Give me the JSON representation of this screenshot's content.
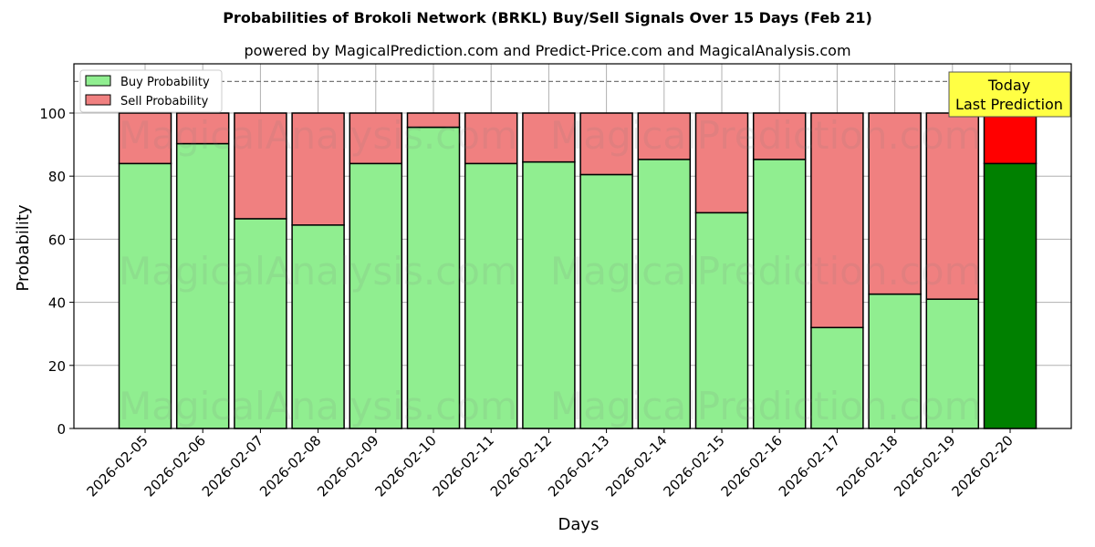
{
  "chart_data": {
    "type": "bar",
    "stacked": true,
    "title": "Probabilities of Brokoli Network (BRKL) Buy/Sell Signals Over 15 Days (Feb 21)",
    "subtitle": "powered by MagicalPrediction.com and Predict-Price.com and MagicalAnalysis.com",
    "xlabel": "Days",
    "ylabel": "Probability",
    "ylim": [
      0,
      115
    ],
    "yticks": [
      0,
      20,
      40,
      60,
      80,
      100
    ],
    "grid": true,
    "legend_position": "upper left",
    "reference_line": 110,
    "categories": [
      "2026-02-05",
      "2026-02-06",
      "2026-02-07",
      "2026-02-08",
      "2026-02-09",
      "2026-02-10",
      "2026-02-11",
      "2026-02-12",
      "2026-02-13",
      "2026-02-14",
      "2026-02-15",
      "2026-02-16",
      "2026-02-17",
      "2026-02-18",
      "2026-02-19",
      "2026-02-20"
    ],
    "series": [
      {
        "name": "Buy Probability",
        "color": "#90ee90",
        "values": [
          84,
          90.3,
          66.5,
          64.5,
          84,
          95.5,
          84,
          84.5,
          80.5,
          85.3,
          68.4,
          85.3,
          32,
          42.6,
          41,
          84
        ]
      },
      {
        "name": "Sell Probability",
        "color": "#f08080",
        "values": [
          16,
          9.7,
          33.5,
          35.5,
          16,
          4.5,
          16,
          15.5,
          19.5,
          14.7,
          31.6,
          14.7,
          68,
          57.4,
          59,
          16
        ]
      }
    ],
    "highlight": {
      "index": 15,
      "buy_color": "#008000",
      "sell_color": "#ff0000"
    },
    "annotation": {
      "text_line1": "Today",
      "text_line2": "Last Prediction",
      "background": "#ffff44"
    },
    "watermarks": [
      "MagicalAnalysis.com",
      "MagicalPrediction.com"
    ]
  }
}
